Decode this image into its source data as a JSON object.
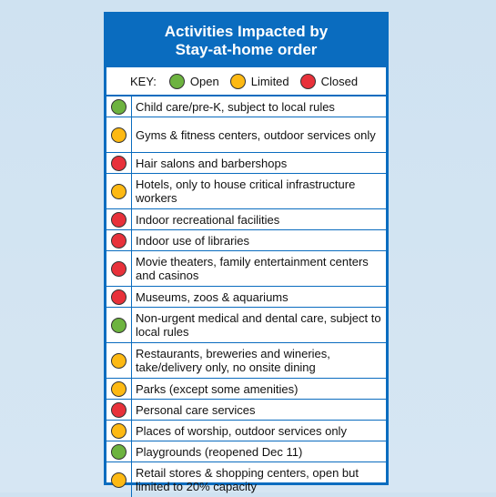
{
  "header": {
    "title_line1": "Activities Impacted by",
    "title_line2": "Stay-at-home order"
  },
  "key": {
    "label": "KEY:",
    "open": "Open",
    "limited": "Limited",
    "closed": "Closed"
  },
  "colors": {
    "open": "#6db33f",
    "limited": "#fdb913",
    "closed": "#e8313a",
    "accent": "#0a6cbf"
  },
  "rows": [
    {
      "text": "Child care/pre-K, subject to local rules",
      "status": "open"
    },
    {
      "text": "Gyms & fitness centers, outdoor services only",
      "status": "limited"
    },
    {
      "text": "Hair salons and barbershops",
      "status": "closed"
    },
    {
      "text": "Hotels, only to house critical infrastructure workers",
      "status": "limited"
    },
    {
      "text": "Indoor recreational facilities",
      "status": "closed"
    },
    {
      "text": "Indoor use of libraries",
      "status": "closed"
    },
    {
      "text": "Movie theaters, family entertainment centers and casinos",
      "status": "closed"
    },
    {
      "text": "Museums, zoos & aquariums",
      "status": "closed"
    },
    {
      "text": "Non-urgent medical and dental care, subject to local rules",
      "status": "open"
    },
    {
      "text": "Restaurants, breweries and wineries, take/delivery only, no onsite dining",
      "status": "limited"
    },
    {
      "text": "Parks (except some amenities)",
      "status": "limited"
    },
    {
      "text": "Personal care services",
      "status": "closed"
    },
    {
      "text": "Places of worship, outdoor services only",
      "status": "limited"
    },
    {
      "text": "Playgrounds (reopened Dec 11)",
      "status": "open"
    },
    {
      "text": "Retail stores & shopping centers, open but limited to 20% capacity",
      "status": "limited"
    }
  ]
}
